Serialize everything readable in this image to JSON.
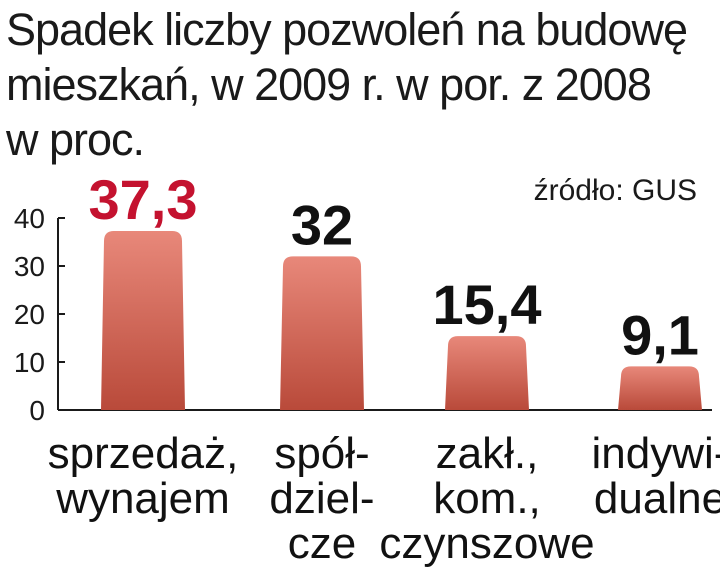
{
  "chart_data": {
    "type": "bar",
    "title_lines": [
      "Spadek liczby pozwoleń na budowę",
      "mieszkań, w 2009 r. w por. z 2008",
      "w proc."
    ],
    "source": "źródło: GUS",
    "categories": [
      [
        "sprzedaż,",
        "wynajem"
      ],
      [
        "spół-",
        "dziel-",
        "cze"
      ],
      [
        "zakł.,",
        "kom.,",
        "czynszowe"
      ],
      [
        "indywi-",
        "dualne"
      ]
    ],
    "values": [
      37.3,
      32,
      15.4,
      9.1
    ],
    "value_labels": [
      "37,3",
      "32",
      "15,4",
      "9,1"
    ],
    "yticks": [
      0,
      10,
      20,
      30,
      40
    ],
    "ylim": [
      0,
      40
    ],
    "grid": false,
    "colors": {
      "bar_top": "#e8887a",
      "bar_bottom": "#b94a3a",
      "highlight_label": "#c4122f",
      "label": "#111111",
      "axis": "#1a1a1a"
    }
  }
}
